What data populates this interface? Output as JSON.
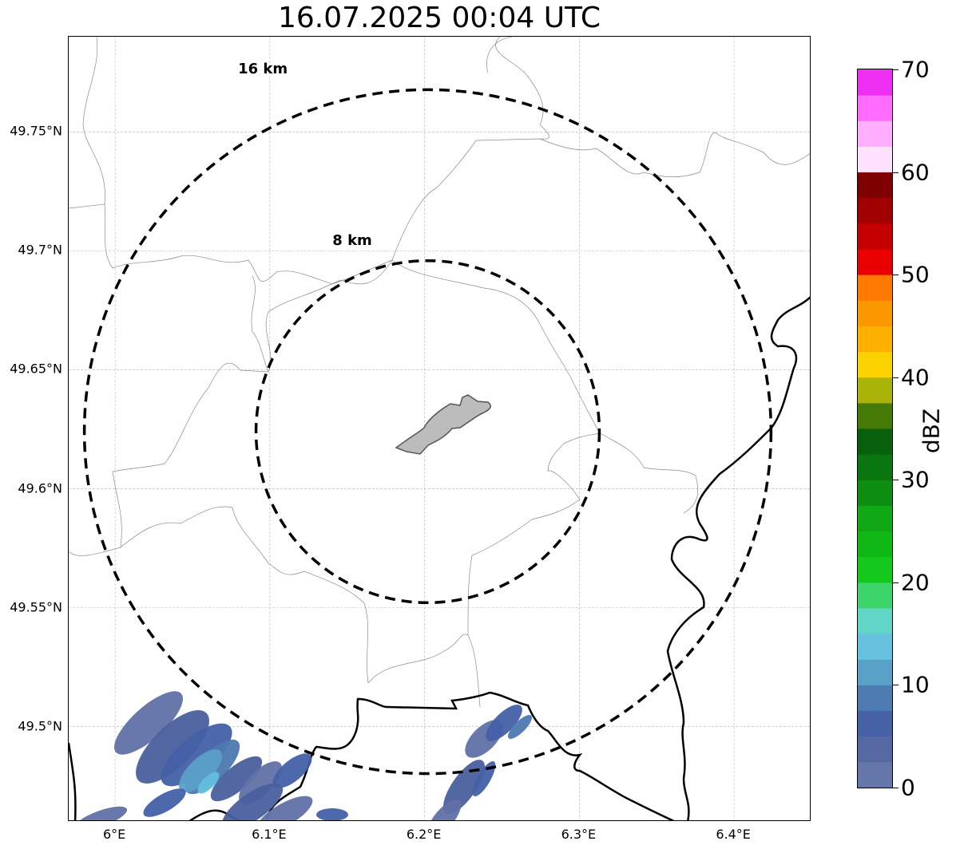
{
  "title": "16.07.2025 00:04 UTC",
  "map": {
    "lon_range": [
      5.97,
      6.45
    ],
    "lat_range": [
      49.46,
      49.79
    ],
    "gridlines": true,
    "lat_ticks": [
      {
        "value": 49.75,
        "label": "49.75°N"
      },
      {
        "value": 49.7,
        "label": "49.7°N"
      },
      {
        "value": 49.65,
        "label": "49.65°N"
      },
      {
        "value": 49.6,
        "label": "49.6°N"
      },
      {
        "value": 49.55,
        "label": "49.55°N"
      },
      {
        "value": 49.5,
        "label": "49.5°N"
      }
    ],
    "lon_ticks": [
      {
        "value": 6.0,
        "label": "6°E"
      },
      {
        "value": 6.1,
        "label": "6.1°E"
      },
      {
        "value": 6.2,
        "label": "6.2°E"
      },
      {
        "value": 6.3,
        "label": "6.3°E"
      },
      {
        "value": 6.4,
        "label": "6.4°E"
      }
    ],
    "center": {
      "lon": 6.202,
      "lat": 49.624
    },
    "range_rings": [
      {
        "radius_km": 8,
        "label": "8 km"
      },
      {
        "radius_km": 16,
        "label": "16 km"
      }
    ],
    "ring_style": "black dashed",
    "features": [
      "country borders (thick black)",
      "commune borders (thin grey)",
      "city outline (grey fill)"
    ],
    "precip_colors": [
      "#6171a6",
      "#4a5f9e",
      "#4560a8",
      "#4d78b1",
      "#5aa0c8",
      "#62bfdd"
    ]
  },
  "colorbar": {
    "label": "dBZ",
    "vmin": 0,
    "vmax": 70,
    "ticks": [
      {
        "value": 0,
        "label": "0"
      },
      {
        "value": 10,
        "label": "10"
      },
      {
        "value": 20,
        "label": "20"
      },
      {
        "value": 30,
        "label": "30"
      },
      {
        "value": 40,
        "label": "40"
      },
      {
        "value": 50,
        "label": "50"
      },
      {
        "value": 60,
        "label": "60"
      },
      {
        "value": 70,
        "label": "70"
      }
    ],
    "colors": [
      "#6577a8",
      "#5568a2",
      "#4661a5",
      "#4f7bb3",
      "#5aa1c9",
      "#66c2df",
      "#62d6c6",
      "#3cd56c",
      "#13c91b",
      "#10b816",
      "#10a814",
      "#0d8e11",
      "#097610",
      "#06600c",
      "#467a07",
      "#aab307",
      "#fcd300",
      "#fdb000",
      "#fd9700",
      "#fd7900",
      "#e90000",
      "#c50000",
      "#a00000",
      "#7f0000",
      "#ffe0ff",
      "#ffaeff",
      "#ff6cff",
      "#ee2ef2"
    ]
  }
}
